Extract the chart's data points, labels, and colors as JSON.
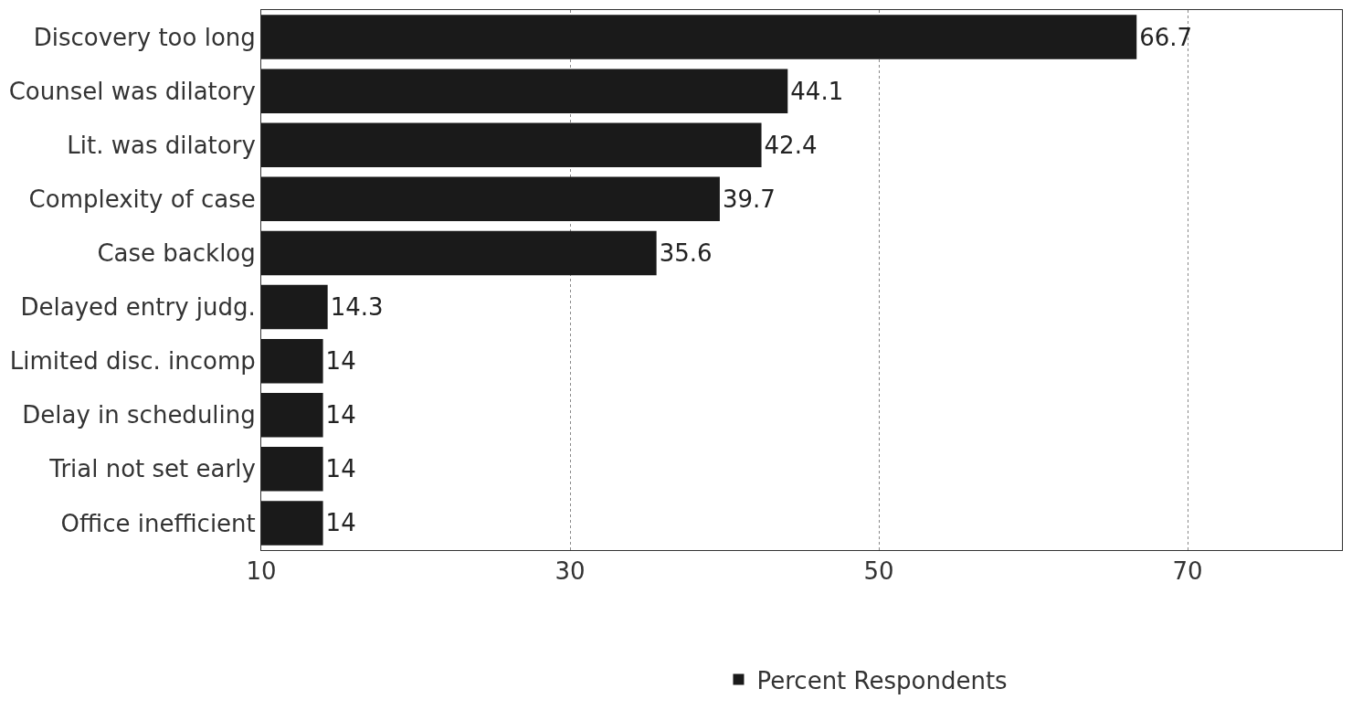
{
  "chart_data": {
    "type": "bar",
    "orientation": "horizontal",
    "categories": [
      "Discovery too long",
      "Counsel was dilatory",
      "Lit. was dilatory",
      "Complexity of case",
      "Case backlog",
      "Delayed entry judg.",
      "Limited disc. incomp",
      "Delay in scheduling",
      "Trial not set early",
      "Office inefficient"
    ],
    "series": [
      {
        "name": "Percent Respondents",
        "color": "#1a1a1a",
        "values": [
          66.7,
          44.1,
          42.4,
          39.7,
          35.6,
          14.3,
          14,
          14,
          14,
          14
        ]
      }
    ],
    "xlim": [
      10,
      80
    ],
    "xticks": [
      10,
      30,
      50,
      70
    ],
    "grid": "x",
    "legend": "bottom",
    "data_labels": true
  }
}
